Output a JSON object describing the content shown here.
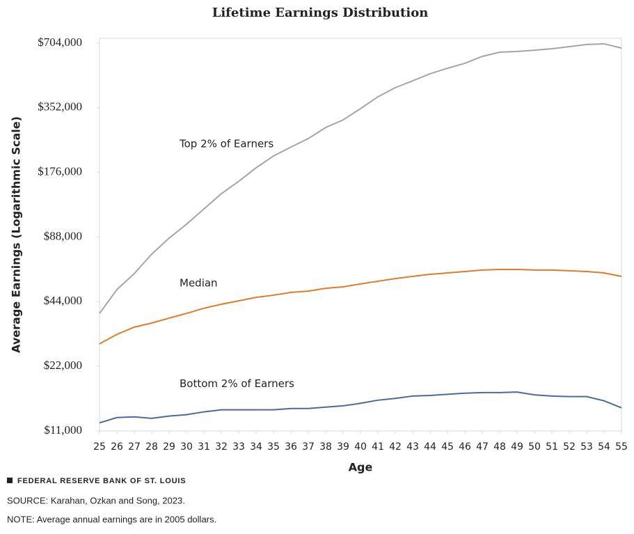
{
  "chart_data": {
    "type": "line",
    "title": "Lifetime Earnings Distribution",
    "ylabel": "Average Earnings (Logarithmic Scale)",
    "xlabel": "Age",
    "yscale": "log",
    "grid": false,
    "x": [
      25,
      26,
      27,
      28,
      29,
      30,
      31,
      32,
      33,
      34,
      35,
      36,
      37,
      38,
      39,
      40,
      41,
      42,
      43,
      44,
      45,
      46,
      47,
      48,
      49,
      50,
      51,
      52,
      53,
      54,
      55
    ],
    "xlim": [
      25,
      55
    ],
    "xticks": [
      25,
      26,
      27,
      28,
      29,
      30,
      31,
      32,
      33,
      34,
      35,
      36,
      37,
      38,
      39,
      40,
      41,
      42,
      43,
      44,
      45,
      46,
      47,
      48,
      49,
      50,
      51,
      52,
      53,
      54,
      55
    ],
    "ylim": [
      11000,
      704000
    ],
    "yticks": [
      {
        "value": 11000,
        "label": "$11,000"
      },
      {
        "value": 22000,
        "label": "$22,000"
      },
      {
        "value": 44000,
        "label": "$44,000"
      },
      {
        "value": 88000,
        "label": "$88,000"
      },
      {
        "value": 176000,
        "label": "$176,000"
      },
      {
        "value": 352000,
        "label": "$352,000"
      },
      {
        "value": 704000,
        "label": "$704,000"
      }
    ],
    "series": [
      {
        "name": "Top 2% of Earners",
        "color": "#a5a5a5",
        "values": [
          38800,
          50100,
          59500,
          73300,
          87000,
          101000,
          119000,
          140000,
          160000,
          185000,
          210000,
          231000,
          253000,
          285000,
          309000,
          349000,
          396000,
          437000,
          470000,
          507000,
          538000,
          567000,
          611000,
          639000,
          644000,
          653000,
          663000,
          678000,
          694000,
          699000,
          668000
        ]
      },
      {
        "name": "Median",
        "color": "#e07b2a",
        "values": [
          28000,
          31000,
          33500,
          35000,
          36900,
          38800,
          41000,
          42800,
          44400,
          46100,
          47200,
          48600,
          49300,
          50800,
          51600,
          53200,
          54800,
          56400,
          57700,
          59000,
          59900,
          60800,
          61800,
          62200,
          62200,
          61800,
          61800,
          61300,
          60800,
          59900,
          57700
        ]
      },
      {
        "name": "Bottom 2% of Earners",
        "color": "#4a6a99",
        "values": [
          12000,
          12700,
          12800,
          12600,
          12900,
          13100,
          13500,
          13800,
          13800,
          13800,
          13800,
          14000,
          14000,
          14200,
          14400,
          14800,
          15300,
          15600,
          16000,
          16100,
          16300,
          16500,
          16600,
          16600,
          16700,
          16200,
          16000,
          15900,
          15900,
          15200,
          14100
        ]
      }
    ],
    "branding": "FEDERAL RESERVE BANK OF ST. LOUIS",
    "source": "SOURCE: Karahan, Ozkan and Song, 2023.",
    "note": "NOTE: Average annual earnings are in 2005 dollars."
  }
}
